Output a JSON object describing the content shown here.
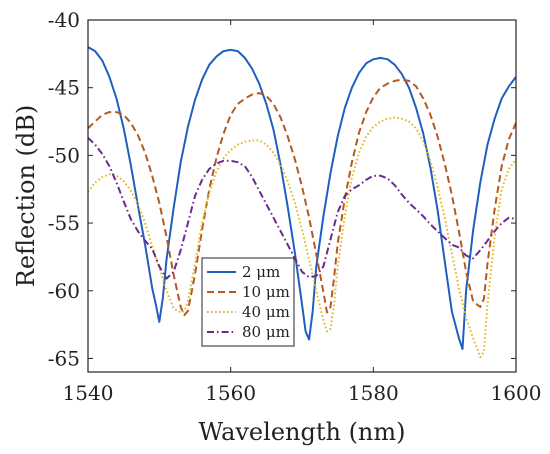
{
  "chart_data": {
    "type": "line",
    "xlabel": "Wavelength (nm)",
    "ylabel": "Reflection (dB)",
    "xlim": [
      1540,
      1600
    ],
    "ylim": [
      -66,
      -40
    ],
    "xticks": [
      1540,
      1560,
      1580,
      1600
    ],
    "yticks": [
      -40,
      -45,
      -50,
      -55,
      -60,
      -65
    ],
    "grid": false,
    "legend_position": "bottom-left",
    "series": [
      {
        "name": "2 μm",
        "color": "#1f5fbf",
        "dash": "solid",
        "x": [
          1540,
          1541,
          1542,
          1543,
          1544,
          1545,
          1546,
          1547,
          1548,
          1549,
          1549.5,
          1550,
          1550.5,
          1551,
          1552,
          1553,
          1554,
          1555,
          1556,
          1557,
          1558,
          1559,
          1560,
          1561,
          1562,
          1563,
          1564,
          1565,
          1566,
          1567,
          1568,
          1569,
          1570,
          1570.5,
          1571,
          1571.5,
          1572,
          1573,
          1574,
          1575,
          1576,
          1577,
          1578,
          1579,
          1580,
          1581,
          1582,
          1583,
          1584,
          1585,
          1586,
          1587,
          1588,
          1589,
          1590,
          1591,
          1592,
          1592.5,
          1593,
          1594,
          1595,
          1596,
          1597,
          1598,
          1599,
          1600
        ],
        "y": [
          -42.0,
          -42.3,
          -43.0,
          -44.2,
          -45.8,
          -48.0,
          -50.7,
          -53.7,
          -56.6,
          -59.8,
          -61.0,
          -62.3,
          -60.5,
          -57.7,
          -53.9,
          -50.5,
          -47.9,
          -45.9,
          -44.4,
          -43.3,
          -42.7,
          -42.3,
          -42.2,
          -42.3,
          -42.8,
          -43.6,
          -44.7,
          -46.2,
          -48.1,
          -50.7,
          -53.8,
          -57.2,
          -61.0,
          -63.0,
          -63.6,
          -61.5,
          -58.2,
          -54.5,
          -51.3,
          -48.6,
          -46.5,
          -45.0,
          -43.9,
          -43.2,
          -42.9,
          -42.8,
          -42.9,
          -43.3,
          -44.0,
          -45.0,
          -46.5,
          -48.4,
          -50.9,
          -54.0,
          -57.8,
          -61.5,
          -63.5,
          -64.3,
          -60.0,
          -55.5,
          -52.0,
          -49.2,
          -47.3,
          -45.8,
          -44.9,
          -44.2
        ]
      },
      {
        "name": "10 μm",
        "color": "#b55a1e",
        "dash": "dashed",
        "x": [
          1540,
          1541,
          1542,
          1543,
          1544,
          1545,
          1546,
          1547,
          1548,
          1549,
          1550,
          1551,
          1552,
          1553,
          1553.5,
          1554,
          1555,
          1556,
          1557,
          1558,
          1559,
          1560,
          1561,
          1562,
          1563,
          1564,
          1565,
          1566,
          1567,
          1568,
          1569,
          1570,
          1571,
          1572,
          1573,
          1573.5,
          1574,
          1574.5,
          1575,
          1576,
          1577,
          1578,
          1579,
          1580,
          1581,
          1582,
          1583,
          1584,
          1585,
          1586,
          1587,
          1588,
          1589,
          1590,
          1591,
          1592,
          1593,
          1594,
          1595,
          1595.5,
          1596,
          1597,
          1598,
          1599,
          1600
        ],
        "y": [
          -48.0,
          -47.5,
          -47.0,
          -46.8,
          -46.8,
          -47.0,
          -47.6,
          -48.5,
          -49.8,
          -51.5,
          -53.5,
          -56.0,
          -58.8,
          -61.2,
          -61.8,
          -61.5,
          -58.8,
          -55.5,
          -52.5,
          -50.2,
          -48.4,
          -47.0,
          -46.2,
          -45.8,
          -45.5,
          -45.4,
          -45.6,
          -46.2,
          -47.2,
          -48.6,
          -50.3,
          -52.3,
          -54.6,
          -57.3,
          -60.1,
          -61.6,
          -61.2,
          -59.0,
          -56.5,
          -53.2,
          -50.5,
          -48.3,
          -46.8,
          -45.7,
          -45.0,
          -44.7,
          -44.5,
          -44.4,
          -44.5,
          -44.9,
          -45.8,
          -47.0,
          -48.6,
          -50.6,
          -52.9,
          -55.6,
          -58.6,
          -60.8,
          -61.2,
          -60.6,
          -58.0,
          -54.0,
          -50.8,
          -48.8,
          -47.6
        ]
      },
      {
        "name": "40 μm",
        "color": "#e0b820",
        "dash": "dotted",
        "x": [
          1540,
          1541,
          1542,
          1543,
          1544,
          1545,
          1546,
          1547,
          1548,
          1549,
          1550,
          1551,
          1552,
          1553,
          1553.5,
          1554,
          1555,
          1556,
          1557,
          1558,
          1559,
          1560,
          1561,
          1562,
          1563,
          1564,
          1565,
          1566,
          1567,
          1568,
          1569,
          1570,
          1571,
          1572,
          1573,
          1573.5,
          1574,
          1574.5,
          1575,
          1576,
          1577,
          1578,
          1579,
          1580,
          1581,
          1582,
          1583,
          1584,
          1585,
          1586,
          1587,
          1588,
          1589,
          1590,
          1591,
          1592,
          1593,
          1594,
          1595,
          1595.5,
          1596,
          1597,
          1598,
          1599,
          1600
        ],
        "y": [
          -52.7,
          -52.0,
          -51.6,
          -51.4,
          -51.5,
          -51.9,
          -52.6,
          -53.6,
          -55.0,
          -56.7,
          -58.3,
          -60.0,
          -61.3,
          -61.6,
          -61.5,
          -60.8,
          -58.0,
          -55.0,
          -52.7,
          -51.2,
          -50.2,
          -49.6,
          -49.2,
          -49.0,
          -48.9,
          -48.9,
          -49.2,
          -49.8,
          -50.7,
          -51.9,
          -53.5,
          -55.5,
          -57.7,
          -60.0,
          -62.2,
          -63.0,
          -62.8,
          -61.0,
          -58.2,
          -54.5,
          -51.6,
          -49.8,
          -48.6,
          -47.9,
          -47.5,
          -47.3,
          -47.2,
          -47.3,
          -47.5,
          -48.0,
          -49.0,
          -50.4,
          -52.3,
          -54.6,
          -57.2,
          -59.8,
          -62.0,
          -63.5,
          -64.9,
          -64.5,
          -61.0,
          -56.0,
          -52.5,
          -51.0,
          -50.3
        ]
      },
      {
        "name": "80 μm",
        "color": "#6a2a8e",
        "dash": "dashdot",
        "x": [
          1540,
          1541,
          1542,
          1543,
          1544,
          1545,
          1546,
          1547,
          1548,
          1549,
          1550,
          1551,
          1552,
          1553,
          1554,
          1555,
          1556,
          1557,
          1558,
          1559,
          1560,
          1561,
          1562,
          1563,
          1564,
          1565,
          1566,
          1567,
          1568,
          1569,
          1570,
          1571,
          1572,
          1573,
          1574,
          1575,
          1576,
          1577,
          1578,
          1579,
          1580,
          1581,
          1582,
          1583,
          1584,
          1585,
          1586,
          1587,
          1588,
          1589,
          1590,
          1591,
          1592,
          1593,
          1594,
          1595,
          1596,
          1597,
          1598,
          1599,
          1600
        ],
        "y": [
          -48.7,
          -49.2,
          -49.9,
          -50.8,
          -52.0,
          -53.4,
          -54.7,
          -55.6,
          -56.3,
          -56.9,
          -58.2,
          -59.1,
          -58.6,
          -57.0,
          -55.0,
          -53.0,
          -51.8,
          -51.0,
          -50.6,
          -50.4,
          -50.4,
          -50.5,
          -50.8,
          -51.6,
          -52.6,
          -53.6,
          -54.6,
          -55.6,
          -56.6,
          -57.6,
          -58.6,
          -59.0,
          -58.9,
          -58.2,
          -56.2,
          -54.2,
          -53.0,
          -52.5,
          -52.2,
          -51.8,
          -51.5,
          -51.5,
          -51.7,
          -52.2,
          -52.9,
          -53.5,
          -54.0,
          -54.5,
          -55.1,
          -55.6,
          -56.1,
          -56.6,
          -56.8,
          -57.4,
          -57.6,
          -57.0,
          -56.3,
          -55.6,
          -55.0,
          -54.6,
          -54.7
        ]
      }
    ]
  }
}
